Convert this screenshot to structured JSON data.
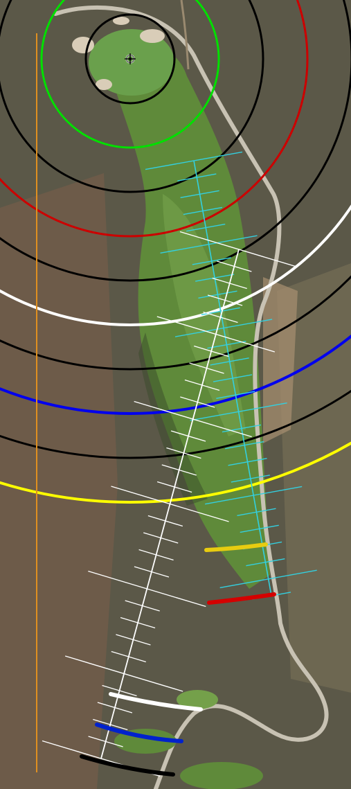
{
  "map": {
    "type": "golf-hole-yardage-map",
    "imagery": "aerial",
    "colors": {
      "rough_dark": "#5b5848",
      "rough_light": "#7a7258",
      "desert_brown": "#7c5e4a",
      "fairway": "#5f8a3a",
      "fairway_light": "#74a04a",
      "green": "#6aa04c",
      "bunker": "#d9cdb8",
      "cart_path": "#c8c2b3",
      "tree": "#3a4a2a"
    },
    "pin": {
      "icon": "flag-target-icon"
    },
    "distance_rings": [
      {
        "color": "#000000"
      },
      {
        "color": "#00e000"
      },
      {
        "color": "#000000"
      },
      {
        "color": "#cc0000"
      },
      {
        "color": "#000000"
      },
      {
        "color": "#ffffff"
      },
      {
        "color": "#000000"
      },
      {
        "color": "#0000ee"
      },
      {
        "color": "#000000"
      },
      {
        "color": "#ffff00"
      }
    ],
    "tee_markers": [
      {
        "name": "yellow-tee",
        "color": "#e8cc10"
      },
      {
        "name": "red-tee",
        "color": "#d40000"
      },
      {
        "name": "white-tee",
        "color": "#ffffff"
      },
      {
        "name": "blue-tee",
        "color": "#0022cc"
      },
      {
        "name": "black-tee",
        "color": "#000000"
      }
    ],
    "measure_lines": [
      {
        "name": "cyan-line",
        "color": "#33d0e0"
      },
      {
        "name": "white-line",
        "color": "#ffffff"
      }
    ],
    "reference_line": {
      "color": "#e09020"
    }
  }
}
